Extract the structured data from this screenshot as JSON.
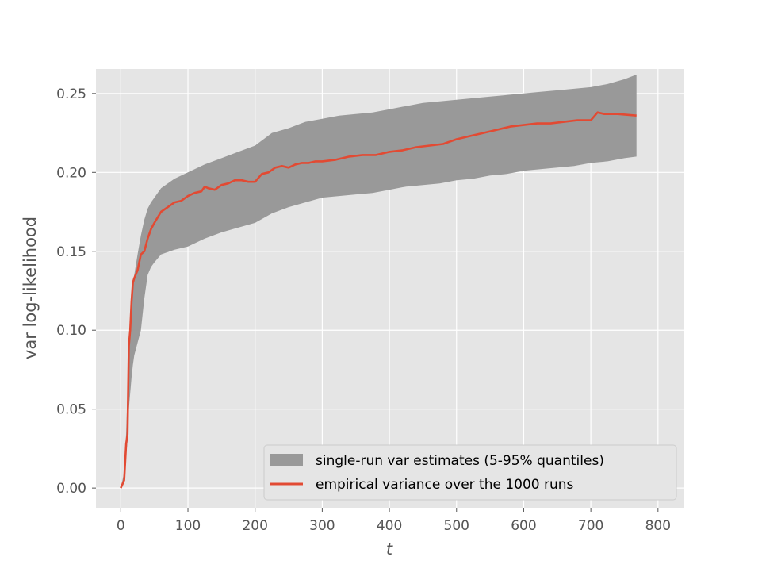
{
  "chart_data": {
    "type": "area",
    "title": "",
    "xlabel": "t",
    "ylabel": "var log-likelihood",
    "xlim": [
      -37,
      838
    ],
    "ylim": [
      -0.0125,
      0.2655
    ],
    "xticks": [
      0,
      100,
      200,
      300,
      400,
      500,
      600,
      700,
      800
    ],
    "yticks": [
      0.0,
      0.05,
      0.1,
      0.15,
      0.2,
      0.25
    ],
    "xtick_labels": [
      "0",
      "100",
      "200",
      "300",
      "400",
      "500",
      "600",
      "700",
      "800"
    ],
    "ytick_labels": [
      "0.00",
      "0.05",
      "0.10",
      "0.15",
      "0.20",
      "0.25"
    ],
    "grid": true,
    "legend_position": "lower-right",
    "colors": {
      "band": "#999999",
      "line": "#e24a33",
      "plot_bg": "#e5e5e5",
      "grid": "#ffffff"
    },
    "series": [
      {
        "name": "single-run var estimates (5-95% quantiles)",
        "kind": "band",
        "x": [
          0,
          5,
          8,
          10,
          12,
          14,
          16,
          18,
          20,
          25,
          30,
          35,
          40,
          45,
          50,
          60,
          80,
          100,
          125,
          150,
          175,
          200,
          225,
          250,
          275,
          300,
          325,
          350,
          375,
          400,
          425,
          450,
          475,
          500,
          525,
          550,
          575,
          600,
          625,
          650,
          675,
          700,
          725,
          750,
          768
        ],
        "lower": [
          0.0,
          0.003,
          0.02,
          0.03,
          0.05,
          0.06,
          0.07,
          0.078,
          0.084,
          0.092,
          0.1,
          0.12,
          0.135,
          0.14,
          0.143,
          0.148,
          0.151,
          0.153,
          0.158,
          0.162,
          0.165,
          0.168,
          0.174,
          0.178,
          0.181,
          0.184,
          0.185,
          0.186,
          0.187,
          0.189,
          0.191,
          0.192,
          0.193,
          0.195,
          0.196,
          0.198,
          0.199,
          0.201,
          0.202,
          0.203,
          0.204,
          0.206,
          0.207,
          0.209,
          0.21
        ],
        "upper": [
          0.0,
          0.01,
          0.035,
          0.06,
          0.08,
          0.1,
          0.115,
          0.128,
          0.135,
          0.148,
          0.16,
          0.17,
          0.177,
          0.181,
          0.184,
          0.19,
          0.196,
          0.2,
          0.205,
          0.209,
          0.213,
          0.217,
          0.225,
          0.228,
          0.232,
          0.234,
          0.236,
          0.237,
          0.238,
          0.24,
          0.242,
          0.244,
          0.245,
          0.246,
          0.247,
          0.248,
          0.249,
          0.25,
          0.251,
          0.252,
          0.253,
          0.254,
          0.256,
          0.259,
          0.262
        ]
      },
      {
        "name": "empirical variance over the 1000 runs",
        "kind": "line",
        "x": [
          0,
          5,
          8,
          10,
          12,
          14,
          16,
          18,
          20,
          25,
          30,
          35,
          40,
          45,
          50,
          60,
          70,
          80,
          90,
          100,
          110,
          120,
          125,
          130,
          140,
          150,
          160,
          170,
          180,
          190,
          200,
          210,
          220,
          230,
          240,
          250,
          260,
          270,
          280,
          290,
          300,
          320,
          340,
          360,
          380,
          400,
          420,
          440,
          460,
          480,
          500,
          520,
          540,
          560,
          580,
          600,
          620,
          640,
          660,
          680,
          700,
          710,
          720,
          740,
          768
        ],
        "y": [
          0.0,
          0.005,
          0.028,
          0.034,
          0.09,
          0.1,
          0.118,
          0.13,
          0.133,
          0.138,
          0.148,
          0.15,
          0.158,
          0.164,
          0.168,
          0.175,
          0.178,
          0.181,
          0.182,
          0.185,
          0.187,
          0.188,
          0.191,
          0.19,
          0.189,
          0.192,
          0.193,
          0.195,
          0.195,
          0.194,
          0.194,
          0.199,
          0.2,
          0.203,
          0.204,
          0.203,
          0.205,
          0.206,
          0.206,
          0.207,
          0.207,
          0.208,
          0.21,
          0.211,
          0.211,
          0.213,
          0.214,
          0.216,
          0.217,
          0.218,
          0.221,
          0.223,
          0.225,
          0.227,
          0.229,
          0.23,
          0.231,
          0.231,
          0.232,
          0.233,
          0.233,
          0.238,
          0.237,
          0.237,
          0.236
        ]
      }
    ]
  }
}
